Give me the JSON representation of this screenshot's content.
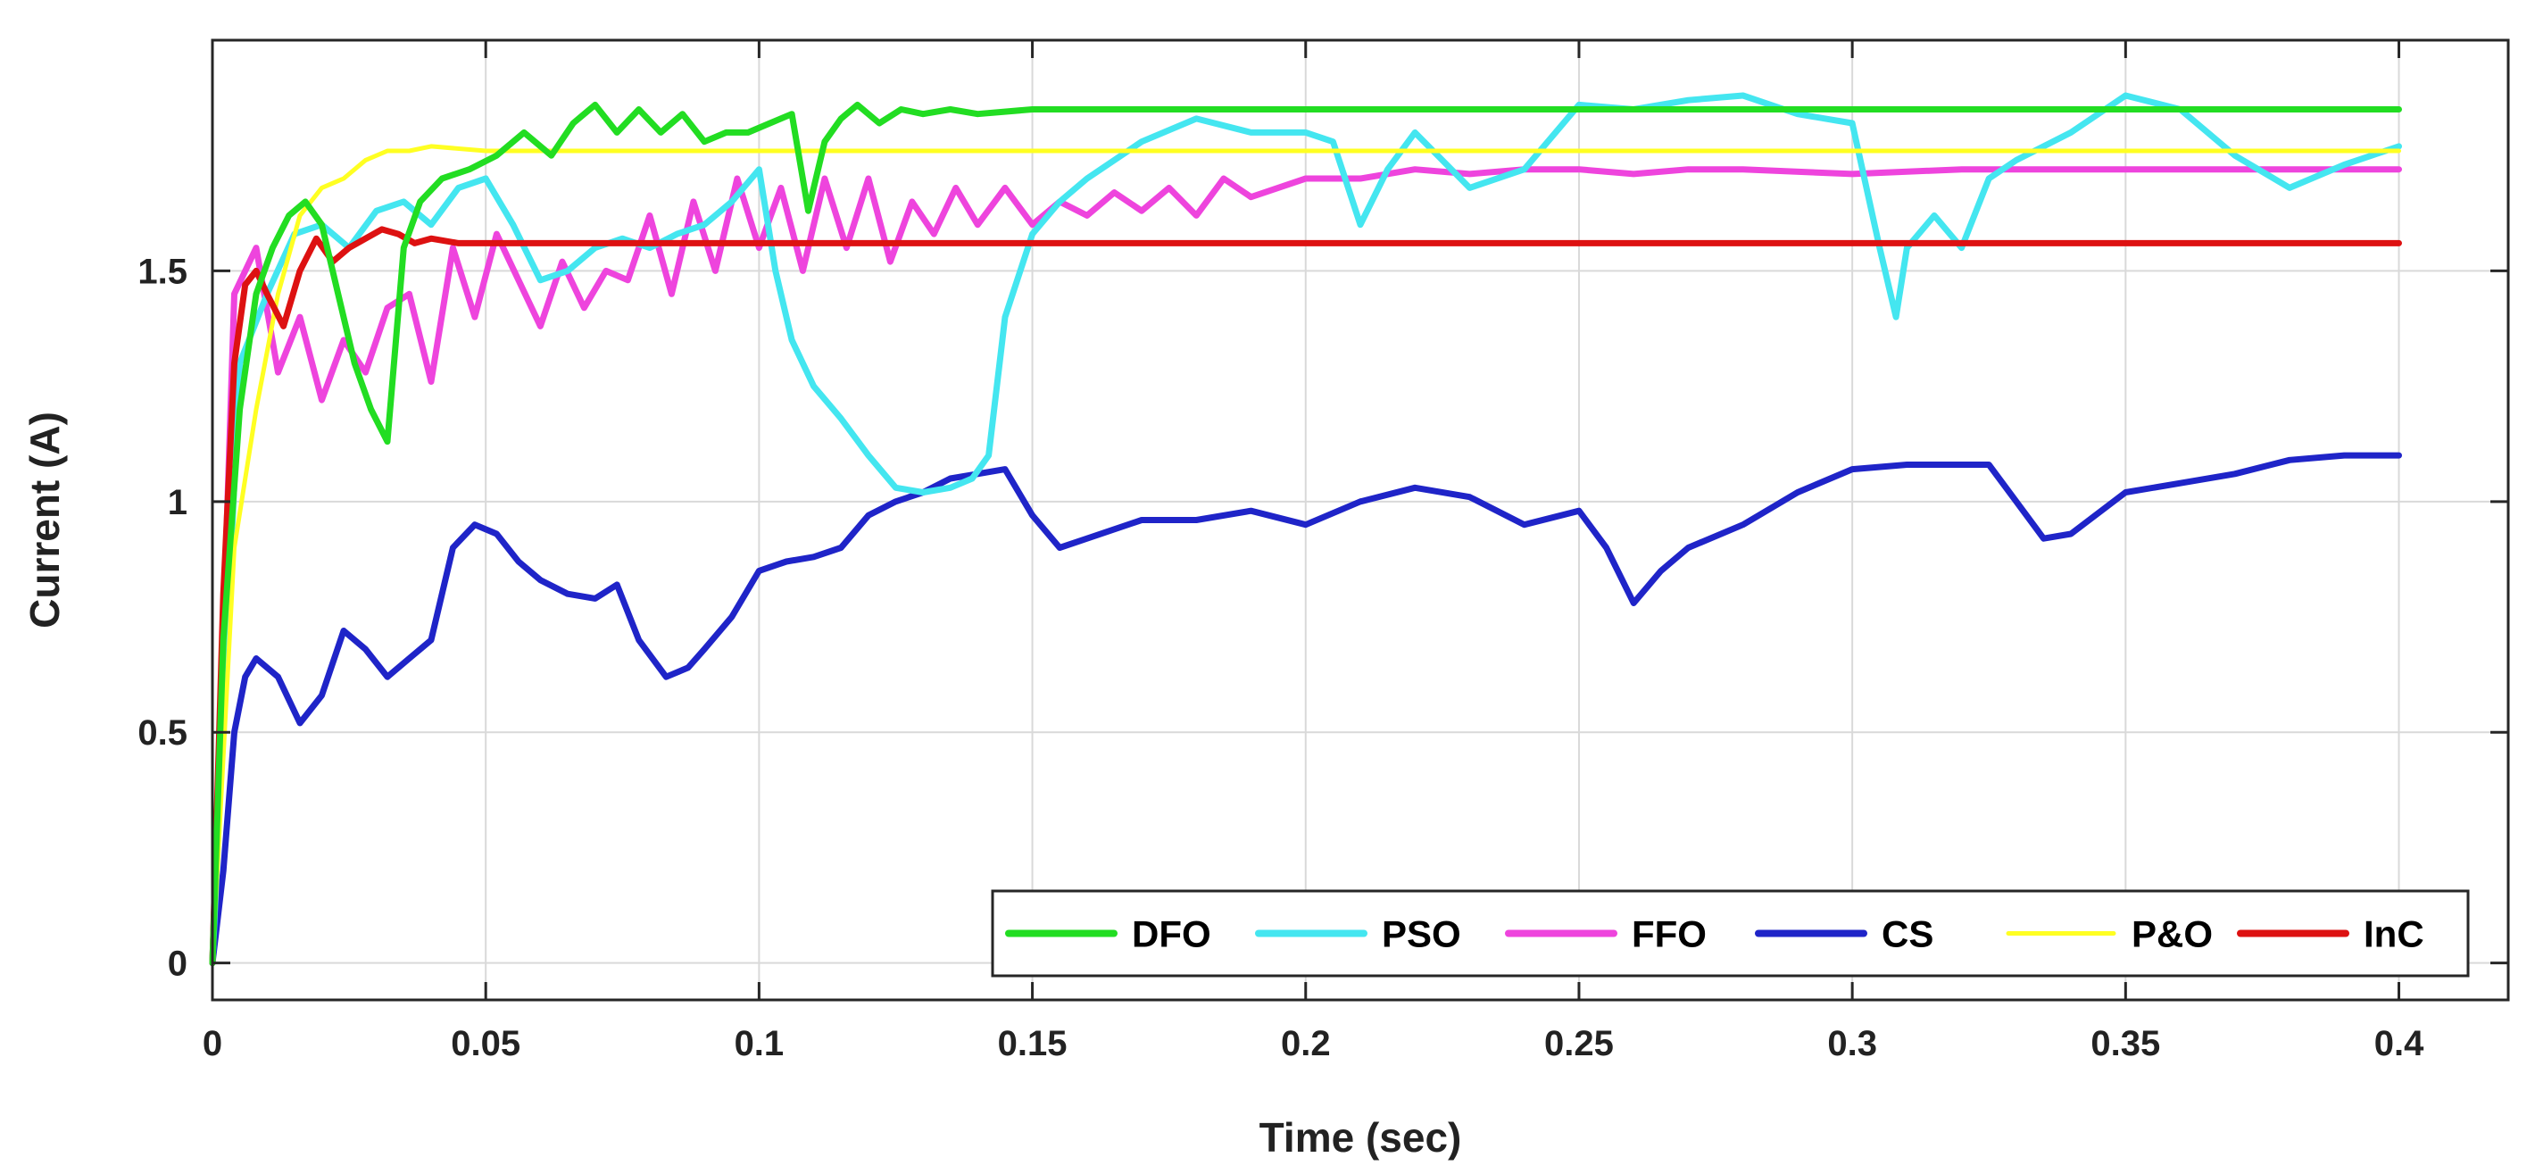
{
  "chart_data": {
    "type": "line",
    "title": "",
    "xlabel": "Time (sec)",
    "ylabel": "Current (A)",
    "xlim": [
      0,
      0.42
    ],
    "ylim": [
      -0.08,
      2.0
    ],
    "grid": true,
    "x_ticks": [
      0,
      0.05,
      0.1,
      0.15,
      0.2,
      0.25,
      0.3,
      0.35,
      0.4
    ],
    "x_tick_labels": [
      "0",
      "0.05",
      "0.1",
      "0.15",
      "0.2",
      "0.25",
      "0.3",
      "0.35",
      "0.4"
    ],
    "y_ticks": [
      0,
      0.5,
      1,
      1.5
    ],
    "y_tick_labels": [
      "0",
      "0.5",
      "1",
      "1.5"
    ],
    "legend": {
      "position": "bottom-right",
      "orientation": "horizontal"
    },
    "series": [
      {
        "name": "DFO",
        "color": "#22dd22",
        "x": [
          0,
          0.002,
          0.005,
          0.008,
          0.011,
          0.014,
          0.017,
          0.02,
          0.023,
          0.026,
          0.029,
          0.032,
          0.035,
          0.038,
          0.042,
          0.047,
          0.052,
          0.057,
          0.062,
          0.066,
          0.07,
          0.074,
          0.078,
          0.082,
          0.086,
          0.09,
          0.094,
          0.098,
          0.102,
          0.106,
          0.109,
          0.112,
          0.115,
          0.118,
          0.122,
          0.126,
          0.13,
          0.135,
          0.14,
          0.15,
          0.4
        ],
        "y": [
          0,
          0.7,
          1.2,
          1.45,
          1.55,
          1.62,
          1.65,
          1.6,
          1.45,
          1.3,
          1.2,
          1.13,
          1.55,
          1.65,
          1.7,
          1.72,
          1.75,
          1.8,
          1.75,
          1.82,
          1.86,
          1.8,
          1.85,
          1.8,
          1.84,
          1.78,
          1.8,
          1.8,
          1.82,
          1.84,
          1.63,
          1.78,
          1.83,
          1.86,
          1.82,
          1.85,
          1.84,
          1.85,
          1.84,
          1.85,
          1.85
        ]
      },
      {
        "name": "PSO",
        "color": "#44e6f0",
        "x": [
          0,
          0.005,
          0.01,
          0.015,
          0.02,
          0.025,
          0.03,
          0.035,
          0.04,
          0.045,
          0.05,
          0.055,
          0.06,
          0.065,
          0.07,
          0.075,
          0.08,
          0.085,
          0.09,
          0.095,
          0.1,
          0.103,
          0.106,
          0.11,
          0.115,
          0.12,
          0.125,
          0.13,
          0.135,
          0.139,
          0.142,
          0.145,
          0.15,
          0.155,
          0.16,
          0.17,
          0.18,
          0.19,
          0.2,
          0.205,
          0.21,
          0.215,
          0.22,
          0.23,
          0.24,
          0.25,
          0.26,
          0.27,
          0.28,
          0.29,
          0.3,
          0.305,
          0.308,
          0.31,
          0.315,
          0.32,
          0.325,
          0.33,
          0.34,
          0.35,
          0.36,
          0.37,
          0.38,
          0.39,
          0.4
        ],
        "y": [
          0,
          1.3,
          1.45,
          1.58,
          1.6,
          1.55,
          1.63,
          1.65,
          1.6,
          1.68,
          1.7,
          1.6,
          1.48,
          1.5,
          1.55,
          1.57,
          1.55,
          1.58,
          1.6,
          1.65,
          1.72,
          1.5,
          1.35,
          1.25,
          1.18,
          1.1,
          1.03,
          1.02,
          1.03,
          1.05,
          1.1,
          1.4,
          1.58,
          1.65,
          1.7,
          1.78,
          1.83,
          1.8,
          1.8,
          1.78,
          1.6,
          1.72,
          1.8,
          1.68,
          1.72,
          1.86,
          1.85,
          1.87,
          1.88,
          1.84,
          1.82,
          1.55,
          1.4,
          1.55,
          1.62,
          1.55,
          1.7,
          1.74,
          1.8,
          1.88,
          1.85,
          1.75,
          1.68,
          1.73,
          1.77
        ]
      },
      {
        "name": "FFO",
        "color": "#ee44dd",
        "x": [
          0,
          0.004,
          0.008,
          0.012,
          0.016,
          0.02,
          0.024,
          0.028,
          0.032,
          0.036,
          0.04,
          0.044,
          0.048,
          0.052,
          0.056,
          0.06,
          0.064,
          0.068,
          0.072,
          0.076,
          0.08,
          0.084,
          0.088,
          0.092,
          0.096,
          0.1,
          0.104,
          0.108,
          0.112,
          0.116,
          0.12,
          0.124,
          0.128,
          0.132,
          0.136,
          0.14,
          0.145,
          0.15,
          0.155,
          0.16,
          0.165,
          0.17,
          0.175,
          0.18,
          0.185,
          0.19,
          0.2,
          0.21,
          0.22,
          0.23,
          0.24,
          0.25,
          0.26,
          0.27,
          0.28,
          0.3,
          0.32,
          0.34,
          0.36,
          0.38,
          0.4
        ],
        "y": [
          0,
          1.45,
          1.55,
          1.28,
          1.4,
          1.22,
          1.35,
          1.28,
          1.42,
          1.45,
          1.26,
          1.55,
          1.4,
          1.58,
          1.48,
          1.38,
          1.52,
          1.42,
          1.5,
          1.48,
          1.62,
          1.45,
          1.65,
          1.5,
          1.7,
          1.55,
          1.68,
          1.5,
          1.7,
          1.55,
          1.7,
          1.52,
          1.65,
          1.58,
          1.68,
          1.6,
          1.68,
          1.6,
          1.65,
          1.62,
          1.67,
          1.63,
          1.68,
          1.62,
          1.7,
          1.66,
          1.7,
          1.7,
          1.72,
          1.71,
          1.72,
          1.72,
          1.71,
          1.72,
          1.72,
          1.71,
          1.72,
          1.72,
          1.72,
          1.72,
          1.72
        ]
      },
      {
        "name": "CS",
        "color": "#1f24c8",
        "x": [
          0,
          0.002,
          0.004,
          0.006,
          0.008,
          0.012,
          0.016,
          0.02,
          0.024,
          0.028,
          0.032,
          0.036,
          0.04,
          0.044,
          0.048,
          0.052,
          0.056,
          0.06,
          0.065,
          0.07,
          0.074,
          0.078,
          0.083,
          0.087,
          0.09,
          0.095,
          0.1,
          0.105,
          0.11,
          0.115,
          0.12,
          0.125,
          0.13,
          0.135,
          0.14,
          0.145,
          0.15,
          0.155,
          0.16,
          0.17,
          0.18,
          0.19,
          0.2,
          0.21,
          0.22,
          0.23,
          0.24,
          0.25,
          0.255,
          0.26,
          0.265,
          0.27,
          0.28,
          0.29,
          0.3,
          0.31,
          0.32,
          0.325,
          0.33,
          0.335,
          0.34,
          0.35,
          0.36,
          0.37,
          0.38,
          0.39,
          0.4
        ],
        "y": [
          0,
          0.2,
          0.5,
          0.62,
          0.66,
          0.62,
          0.52,
          0.58,
          0.72,
          0.68,
          0.62,
          0.66,
          0.7,
          0.9,
          0.95,
          0.93,
          0.87,
          0.83,
          0.8,
          0.79,
          0.82,
          0.7,
          0.62,
          0.64,
          0.68,
          0.75,
          0.85,
          0.87,
          0.88,
          0.9,
          0.97,
          1.0,
          1.02,
          1.05,
          1.06,
          1.07,
          0.97,
          0.9,
          0.92,
          0.96,
          0.96,
          0.98,
          0.95,
          1.0,
          1.03,
          1.01,
          0.95,
          0.98,
          0.9,
          0.78,
          0.85,
          0.9,
          0.95,
          1.02,
          1.07,
          1.08,
          1.08,
          1.08,
          1.0,
          0.92,
          0.93,
          1.02,
          1.04,
          1.06,
          1.09,
          1.1,
          1.1
        ]
      },
      {
        "name": "P&O",
        "color": "#ffff22",
        "x": [
          0,
          0.004,
          0.008,
          0.012,
          0.016,
          0.02,
          0.024,
          0.028,
          0.032,
          0.036,
          0.04,
          0.05,
          0.06,
          0.4
        ],
        "y": [
          0,
          0.9,
          1.2,
          1.45,
          1.62,
          1.68,
          1.7,
          1.74,
          1.76,
          1.76,
          1.77,
          1.76,
          1.76,
          1.76
        ]
      },
      {
        "name": "InC",
        "color": "#dd1111",
        "x": [
          0,
          0.002,
          0.004,
          0.006,
          0.008,
          0.01,
          0.013,
          0.016,
          0.019,
          0.022,
          0.025,
          0.028,
          0.031,
          0.034,
          0.037,
          0.04,
          0.045,
          0.05,
          0.4
        ],
        "y": [
          0,
          0.8,
          1.3,
          1.47,
          1.5,
          1.45,
          1.38,
          1.5,
          1.57,
          1.52,
          1.55,
          1.57,
          1.59,
          1.58,
          1.56,
          1.57,
          1.56,
          1.56,
          1.56
        ]
      }
    ]
  }
}
